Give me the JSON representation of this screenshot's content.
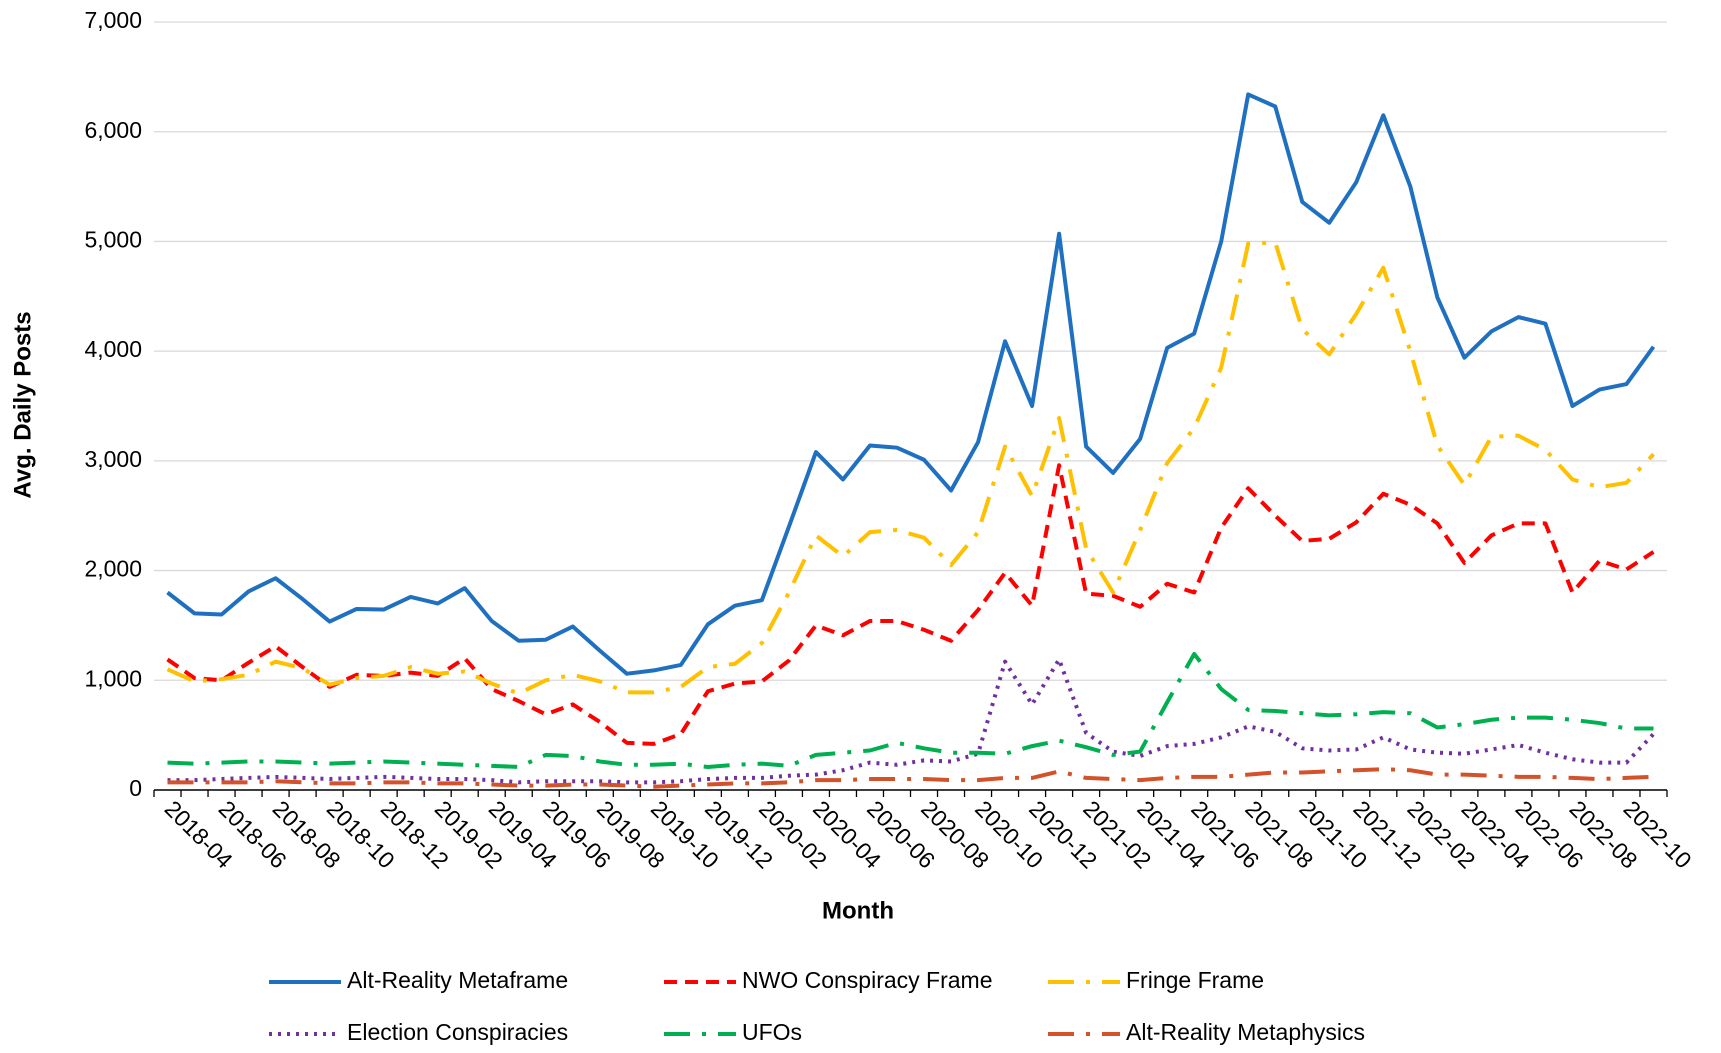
{
  "chart_data": {
    "type": "line",
    "xlabel": "Month",
    "ylabel": "Avg. Daily Posts",
    "categories": [
      "2018-04",
      null,
      "2018-06",
      null,
      "2018-08",
      null,
      "2018-10",
      null,
      "2018-12",
      null,
      "2019-02",
      null,
      "2019-04",
      null,
      "2019-06",
      null,
      "2019-08",
      null,
      "2019-10",
      null,
      "2019-12",
      null,
      "2020-02",
      null,
      "2020-04",
      null,
      "2020-06",
      null,
      "2020-08",
      null,
      "2020-10",
      null,
      "2020-12",
      null,
      "2021-02",
      null,
      "2021-04",
      null,
      "2021-06",
      null,
      "2021-08",
      null,
      "2021-10",
      null,
      "2021-12",
      null,
      "2022-02",
      null,
      "2022-04",
      null,
      "2022-06",
      null,
      "2022-08",
      null,
      "2022-10",
      null
    ],
    "ylim": [
      0,
      7000
    ],
    "yticks": [
      0,
      {
        "value": 1000,
        "label": "1,000"
      },
      {
        "value": 2000,
        "label": "2,000"
      },
      {
        "value": 3000,
        "label": "3,000"
      },
      {
        "value": 4000,
        "label": "4,000"
      },
      {
        "value": 5000,
        "label": "5,000"
      },
      {
        "value": 6000,
        "label": "6,000"
      },
      {
        "value": 7000,
        "label": "7,000"
      }
    ],
    "grid": true,
    "legend": "bottom",
    "series": [
      {
        "name": "Alt-Reality Metaframe",
        "color": "#1f70c1",
        "dash": "solid",
        "values": [
          1800,
          1610,
          1600,
          1810,
          1930,
          1740,
          1535,
          1650,
          1645,
          1760,
          1700,
          1840,
          1540,
          1360,
          1370,
          1490,
          1270,
          1060,
          1090,
          1140,
          1510,
          1680,
          1730,
          2400,
          3080,
          2830,
          3140,
          3120,
          3010,
          2730,
          3170,
          4090,
          3500,
          5070,
          3130,
          2890,
          3200,
          4030,
          4160,
          5000,
          6340,
          6230,
          5360,
          5170,
          5540,
          6150,
          5500,
          4490,
          3940,
          4180,
          4310,
          4250,
          3500,
          3650,
          3700,
          4040
        ]
      },
      {
        "name": "NWO Conspiracy Frame",
        "color": "#ff0000",
        "dash": "dash",
        "values": [
          1190,
          1020,
          1000,
          1160,
          1310,
          1120,
          940,
          1050,
          1040,
          1070,
          1040,
          1200,
          920,
          810,
          690,
          780,
          620,
          430,
          420,
          510,
          900,
          970,
          990,
          1180,
          1500,
          1410,
          1540,
          1540,
          1460,
          1360,
          1640,
          1980,
          1680,
          2960,
          1790,
          1770,
          1670,
          1880,
          1800,
          2390,
          2750,
          2500,
          2270,
          2290,
          2440,
          2700,
          2600,
          2430,
          2070,
          2320,
          2430,
          2430,
          1800,
          2090,
          2010,
          2170
        ]
      },
      {
        "name": "Fringe Frame",
        "color": "#ffc000",
        "dash": "longdashdot",
        "values": [
          1100,
          990,
          1010,
          1050,
          1170,
          1110,
          960,
          1020,
          1040,
          1120,
          1060,
          1080,
          970,
          880,
          1000,
          1050,
          990,
          890,
          890,
          940,
          1120,
          1150,
          1340,
          1800,
          2320,
          2130,
          2350,
          2370,
          2300,
          2050,
          2350,
          3130,
          2680,
          3390,
          2200,
          1800,
          2370,
          2980,
          3300,
          3850,
          4980,
          4990,
          4200,
          3970,
          4340,
          4760,
          4000,
          3140,
          2780,
          3220,
          3230,
          3100,
          2830,
          2760,
          2800,
          3060
        ]
      },
      {
        "name": "Election Conspiracies",
        "color": "#7030a0",
        "dash": "dot",
        "values": [
          90,
          90,
          100,
          110,
          120,
          110,
          100,
          110,
          120,
          110,
          100,
          100,
          90,
          70,
          80,
          80,
          80,
          70,
          70,
          80,
          100,
          110,
          110,
          130,
          140,
          180,
          250,
          230,
          270,
          260,
          330,
          1170,
          780,
          1190,
          520,
          350,
          310,
          400,
          420,
          480,
          580,
          530,
          380,
          360,
          370,
          480,
          370,
          340,
          330,
          370,
          410,
          340,
          280,
          250,
          250,
          510
        ]
      },
      {
        "name": "UFOs",
        "color": "#00b050",
        "dash": "longdashdot",
        "values": [
          250,
          240,
          250,
          260,
          260,
          250,
          240,
          250,
          260,
          250,
          240,
          230,
          220,
          210,
          320,
          310,
          260,
          230,
          230,
          240,
          210,
          230,
          240,
          220,
          320,
          340,
          360,
          430,
          380,
          340,
          340,
          330,
          400,
          450,
          390,
          320,
          350,
          800,
          1240,
          920,
          730,
          720,
          700,
          680,
          690,
          710,
          700,
          570,
          600,
          640,
          660,
          660,
          640,
          610,
          560,
          560
        ]
      },
      {
        "name": "Alt-Reality Metaphysics",
        "color": "#d4522a",
        "dash": "longdashdot",
        "values": [
          70,
          70,
          70,
          70,
          80,
          70,
          60,
          60,
          70,
          70,
          60,
          60,
          50,
          40,
          40,
          50,
          50,
          40,
          30,
          40,
          50,
          60,
          60,
          70,
          90,
          90,
          100,
          100,
          100,
          90,
          90,
          110,
          110,
          170,
          110,
          100,
          90,
          110,
          120,
          120,
          140,
          160,
          160,
          170,
          180,
          190,
          180,
          140,
          140,
          130,
          120,
          120,
          110,
          100,
          110,
          120
        ]
      }
    ]
  }
}
